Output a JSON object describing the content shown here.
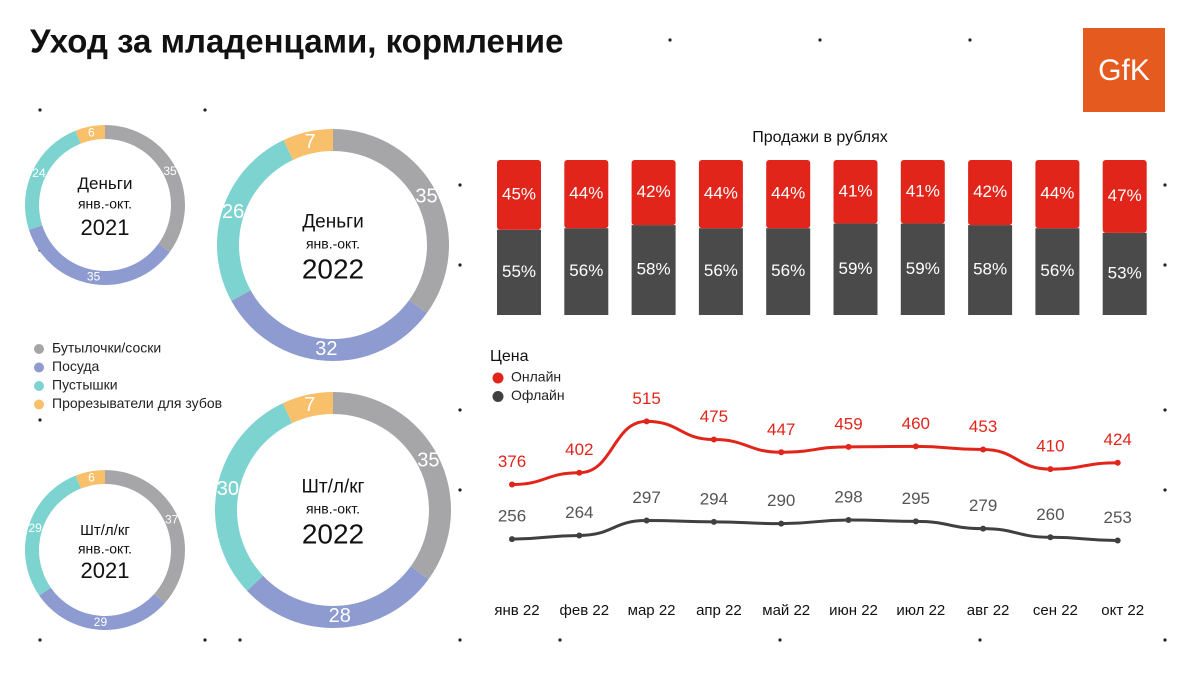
{
  "title": "Уход за младенцами, кормление",
  "logo": "GfK",
  "legend": {
    "items": [
      "Бутылочки/соски",
      "Посуда",
      "Пустышки",
      "Прорезыватели для зубов"
    ],
    "colors": [
      "#a6a6a9",
      "#8d9bd0",
      "#7dd3cf",
      "#f8c06a"
    ]
  },
  "chart_data": [
    {
      "type": "pie",
      "center_text": [
        "Деньги",
        "янв.-окт.",
        "2021"
      ],
      "values": [
        35,
        35,
        24,
        6
      ]
    },
    {
      "type": "pie",
      "center_text": [
        "Деньги",
        "янв.-окт.",
        "2022"
      ],
      "values": [
        35,
        32,
        26,
        7
      ]
    },
    {
      "type": "pie",
      "center_text": [
        "Шт/л/кг",
        "янв.-окт.",
        "2021"
      ],
      "values": [
        37,
        29,
        29,
        6
      ]
    },
    {
      "type": "pie",
      "center_text": [
        "Шт/л/кг",
        "янв.-окт.",
        "2022"
      ],
      "values": [
        35,
        28,
        30,
        7
      ]
    },
    {
      "type": "bar",
      "title": "Продажи в рублях",
      "stacked": true,
      "series": [
        {
          "color": "#4a4a4a",
          "values": [
            55,
            56,
            58,
            56,
            56,
            59,
            59,
            58,
            56,
            53
          ],
          "value_labels": [
            "55%",
            "56%",
            "58%",
            "56%",
            "56%",
            "59%",
            "59%",
            "58%",
            "56%",
            "53%"
          ]
        },
        {
          "color": "#e1251b",
          "values": [
            45,
            44,
            42,
            44,
            44,
            41,
            41,
            42,
            44,
            47
          ],
          "value_labels": [
            "45%",
            "44%",
            "42%",
            "44%",
            "44%",
            "41%",
            "41%",
            "42%",
            "44%",
            "47%"
          ]
        }
      ]
    },
    {
      "type": "line",
      "title": "Цена",
      "categories": [
        "янв 22",
        "фев 22",
        "мар 22",
        "апр 22",
        "май 22",
        "июн 22",
        "июл 22",
        "авг 22",
        "сен 22",
        "окт 22"
      ],
      "ylim": [
        210,
        540
      ],
      "series": [
        {
          "name": "Онлайн",
          "color": "#e1251b",
          "values": [
            376,
            402,
            515,
            475,
            447,
            459,
            460,
            453,
            410,
            424
          ]
        },
        {
          "name": "Офлайн",
          "color": "#404040",
          "values": [
            256,
            264,
            297,
            294,
            290,
            298,
            295,
            279,
            260,
            253
          ]
        }
      ]
    }
  ]
}
